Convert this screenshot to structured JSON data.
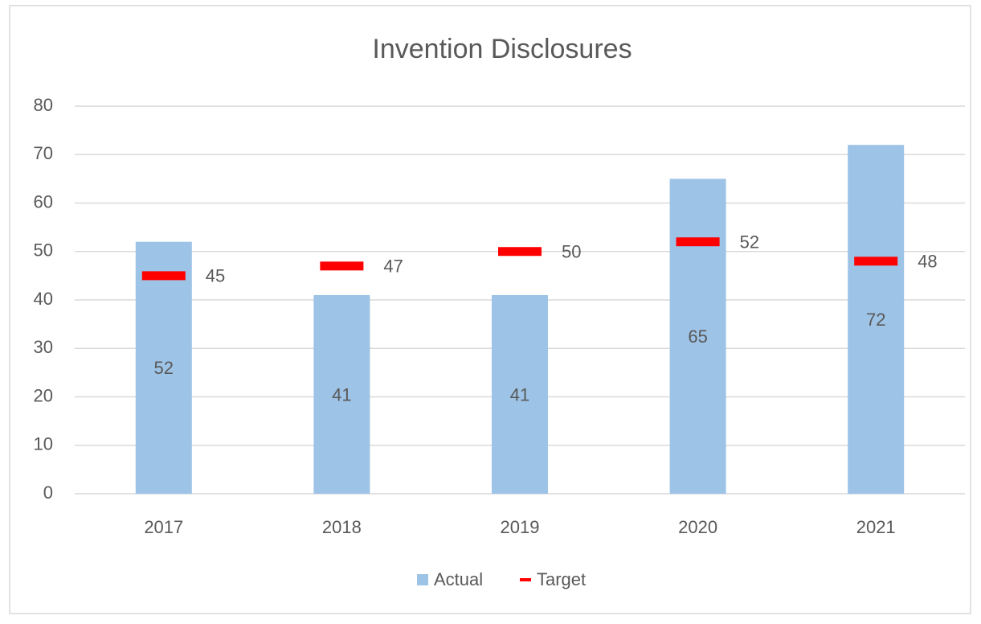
{
  "chart_data": {
    "type": "bar",
    "title": "Invention Disclosures",
    "categories": [
      "2017",
      "2018",
      "2019",
      "2020",
      "2021"
    ],
    "series": [
      {
        "name": "Actual",
        "color": "#9dc3e6",
        "mark": "bar",
        "values": [
          52,
          41,
          41,
          65,
          72
        ]
      },
      {
        "name": "Target",
        "color": "#ff0000",
        "mark": "dash",
        "values": [
          45,
          47,
          50,
          52,
          48
        ]
      }
    ],
    "ylim": [
      0,
      80
    ],
    "yticks": [
      0,
      10,
      20,
      30,
      40,
      50,
      60,
      70,
      80
    ],
    "grid": true,
    "legend": "bottom"
  }
}
